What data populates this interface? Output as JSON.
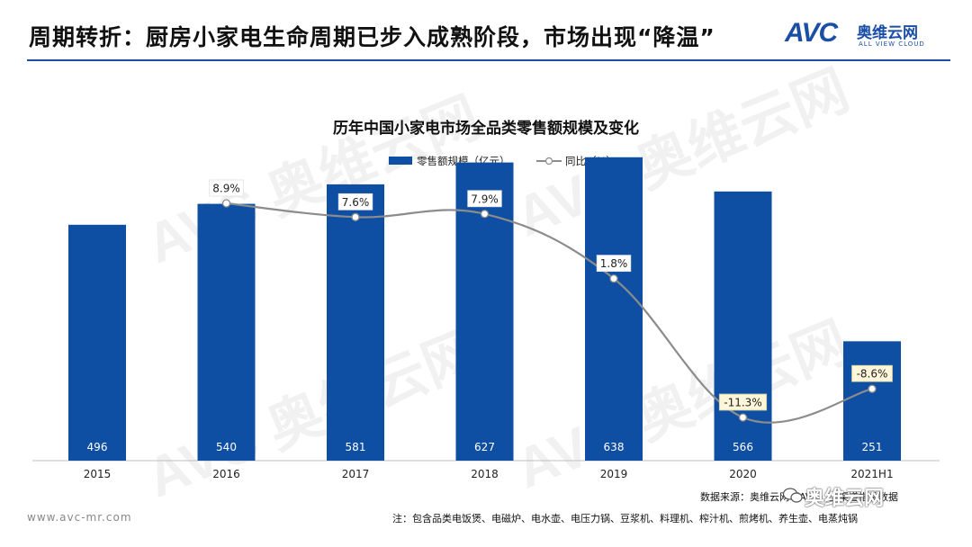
{
  "header": {
    "title": "周期转折：厨房小家电生命周期已步入成熟阶段，市场出现“降温”",
    "logo_mark": "AVC",
    "logo_cn": "奥维云网",
    "logo_en": "ALL VIEW CLOUD"
  },
  "watermark": {
    "mark": "AVC",
    "cn": "奥维云网",
    "en": "ALL VIEW CLOUD"
  },
  "chart_data": {
    "type": "bar",
    "title": "历年中国小家电市场全品类零售额规模及变化",
    "categories": [
      "2015",
      "2016",
      "2017",
      "2018",
      "2019",
      "2020",
      "2021H1"
    ],
    "series": [
      {
        "name": "零售额规模（亿元）",
        "type": "bar",
        "color": "#0f4fa3",
        "values": [
          496,
          540,
          581,
          627,
          638,
          566,
          251
        ]
      },
      {
        "name": "同比（%）",
        "type": "line",
        "color": "#8c8c8c",
        "values": [
          null,
          8.9,
          7.6,
          7.9,
          1.8,
          -11.3,
          -8.6
        ],
        "labels": [
          null,
          "8.9%",
          "7.6%",
          "7.9%",
          "1.8%",
          "-11.3%",
          "-8.6%"
        ]
      }
    ],
    "grid": false,
    "legend": "top-center"
  },
  "footer": {
    "url": "www.avc-mr.com",
    "source": "数据来源：奥维云网（AVC）全渠道推总数据",
    "note": "注：包含品类电饭煲、电磁炉、电水壶、电压力锅、豆浆机、料理机、榨汁机、煎烤机、养生壶、电蒸炖锅",
    "wechat": "奥维云网"
  },
  "colors": {
    "brand": "#1b4ea5",
    "bar": "#0f4fa3",
    "line": "#8c8c8c",
    "label_box": "#fdf6d8"
  }
}
